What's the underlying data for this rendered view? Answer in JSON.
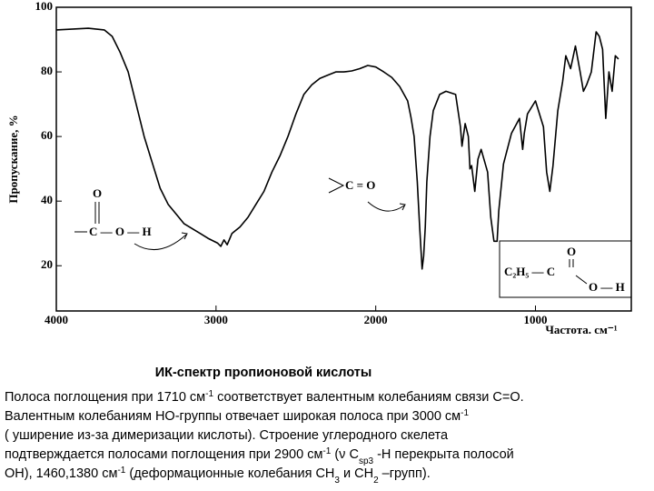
{
  "chart_data": {
    "type": "line",
    "ylabel": "Пропускание, %",
    "xlabel": "Частота. см⁻¹",
    "x": [
      4000,
      3800,
      3700,
      3650,
      3600,
      3550,
      3500,
      3450,
      3400,
      3350,
      3300,
      3250,
      3200,
      3100,
      3050,
      2990,
      2970,
      2950,
      2930,
      2900,
      2850,
      2800,
      2750,
      2700,
      2650,
      2600,
      2550,
      2500,
      2450,
      2400,
      2350,
      2300,
      2250,
      2200,
      2150,
      2100,
      2050,
      2000,
      1950,
      1900,
      1850,
      1800,
      1780,
      1760,
      1740,
      1725,
      1710,
      1700,
      1690,
      1680,
      1660,
      1640,
      1600,
      1560,
      1500,
      1470,
      1460,
      1440,
      1420,
      1410,
      1400,
      1380,
      1360,
      1340,
      1300,
      1280,
      1260,
      1240,
      1230,
      1200,
      1150,
      1100,
      1080,
      1070,
      1050,
      1000,
      950,
      930,
      910,
      890,
      860,
      830,
      810,
      780,
      750,
      720,
      700,
      680,
      650,
      620,
      600,
      580,
      560,
      540,
      520,
      500,
      480
    ],
    "values": [
      93,
      93.5,
      93,
      91,
      86,
      80,
      70,
      60,
      52,
      44,
      39,
      36,
      33,
      30,
      28.5,
      27,
      26,
      28,
      26.5,
      30,
      32,
      35,
      39,
      43,
      49,
      54,
      60,
      67,
      73,
      76,
      78,
      79,
      80,
      80,
      80.3,
      81,
      82,
      81.5,
      80,
      78.3,
      75.5,
      71,
      66,
      60,
      46,
      32,
      19,
      23,
      32,
      46,
      60,
      68,
      73,
      74,
      73,
      63,
      57,
      64,
      60,
      50,
      51,
      43,
      53,
      56,
      49,
      35,
      27.6,
      27.6,
      37,
      51.5,
      61,
      65.6,
      56,
      61,
      67,
      71,
      63,
      49,
      43,
      51,
      68,
      77,
      85,
      81,
      88,
      80,
      74,
      76,
      80,
      92.4,
      91,
      87,
      65.6,
      80,
      74,
      85,
      84
    ],
    "color": "#000000",
    "xlim": [
      4000,
      400
    ],
    "xticks": [
      4000,
      3000,
      2000,
      1000
    ],
    "ylim": [
      6,
      100
    ],
    "yticks": [
      20,
      40,
      60,
      80,
      100
    ],
    "annotations": [
      "O",
      "C — O — H",
      "C = O",
      "O",
      "C₂H₅ — C",
      "O — H"
    ]
  },
  "text_block": {
    "title": "ИК-спектр пропионовой кислоты",
    "lines": [
      [
        {
          "text": "Полоса поглощения при 1710 см"
        },
        {
          "sup": "-1"
        },
        {
          "text": " соответствует валентным колебаниям связи С=О."
        }
      ],
      [
        {
          "text": "Валентным  колебаниям  НО-группы отвечает широкая полоса при 3000 см"
        },
        {
          "sup": "-1"
        }
      ],
      [
        {
          "text": "( уширение из-за димеризации кислоты). Строение углеродного скелета"
        }
      ],
      [
        {
          "text": "подтверждается полосами поглощения при 2900 см"
        },
        {
          "sup": "-1"
        },
        {
          "text": "  (ν C"
        },
        {
          "sub": "sp3"
        },
        {
          "text": "  -Н перекрыта полосой"
        }
      ],
      [
        {
          "text": "ОН), 1460,1380 см"
        },
        {
          "sup": "-1"
        },
        {
          "text": " (деформационные колебания СН"
        },
        {
          "sub": "3"
        },
        {
          "text": " и СН"
        },
        {
          "sub": "2"
        },
        {
          "text": " –групп)."
        }
      ]
    ]
  }
}
